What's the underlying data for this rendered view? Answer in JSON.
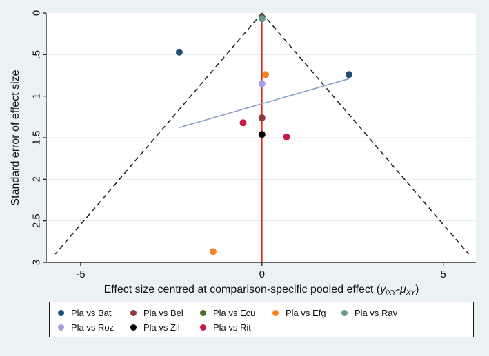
{
  "chart_data": {
    "type": "scatter",
    "title": "",
    "xlabel_main": "Effect size centred at comparison-specific pooled effect (",
    "xlabel_formula": "y",
    "xlabel_sub1": "iXY",
    "xlabel_minus": "-μ",
    "xlabel_sub2": "XY",
    "xlabel_close": ")",
    "ylabel": "Standard error of effect size",
    "xlim": [
      -5.95,
      5.9
    ],
    "ylim": [
      3,
      0
    ],
    "xticks": [
      {
        "value": -5,
        "label": "-5"
      },
      {
        "value": 0,
        "label": "0"
      },
      {
        "value": 5,
        "label": "5"
      }
    ],
    "yticks": [
      {
        "value": 0,
        "label": "0"
      },
      {
        "value": 0.5,
        "label": ".5"
      },
      {
        "value": 1,
        "label": "1"
      },
      {
        "value": 1.5,
        "label": "1.5"
      },
      {
        "value": 2,
        "label": "2"
      },
      {
        "value": 2.5,
        "label": "2.5"
      },
      {
        "value": 3,
        "label": "3"
      }
    ],
    "funnel": {
      "apex": [
        0,
        0
      ],
      "left_end": [
        -5.7,
        2.9
      ],
      "right_end": [
        5.7,
        2.9
      ]
    },
    "reference_line_x": 0,
    "fit_line": {
      "x1": -2.3,
      "y1": 1.38,
      "x2": 2.4,
      "y2": 0.79
    },
    "series": [
      {
        "name": "Pla vs Bat",
        "color": "#1f4e79",
        "points": [
          [
            -2.28,
            0.47
          ],
          [
            2.4,
            0.74
          ]
        ]
      },
      {
        "name": "Pla vs Bel",
        "color": "#8b3a3a",
        "points": [
          [
            0.0,
            1.26
          ]
        ]
      },
      {
        "name": "Pla vs Ecu",
        "color": "#4a6b2a",
        "points": [
          [
            0.0,
            0.06
          ]
        ]
      },
      {
        "name": "Pla vs Efg",
        "color": "#f28522",
        "points": [
          [
            0.1,
            0.74
          ],
          [
            -1.35,
            2.87
          ]
        ]
      },
      {
        "name": "Pla vs Rav",
        "color": "#6a9a8f",
        "points": [
          [
            0.0,
            0.07
          ]
        ]
      },
      {
        "name": "Pla vs Roz",
        "color": "#a89fe0",
        "points": [
          [
            0.0,
            0.85
          ]
        ]
      },
      {
        "name": "Pla vs Zil",
        "color": "#000000",
        "points": [
          [
            0.0,
            1.46
          ]
        ]
      },
      {
        "name": "Pla vs Rit",
        "color": "#cc1845",
        "points": [
          [
            -0.52,
            1.32
          ],
          [
            0.68,
            1.49
          ]
        ]
      }
    ],
    "legend": [
      [
        {
          "label": "Pla vs Bat",
          "color": "#1f4e79"
        },
        {
          "label": "Pla vs Bel",
          "color": "#8b3a3a"
        },
        {
          "label": "Pla vs Ecu",
          "color": "#4a6b2a"
        },
        {
          "label": "Pla vs Efg",
          "color": "#f28522"
        },
        {
          "label": "Pla vs Rav",
          "color": "#6a9a8f"
        }
      ],
      [
        {
          "label": "Pla vs Roz",
          "color": "#a89fe0"
        },
        {
          "label": "Pla vs Zil",
          "color": "#000000"
        },
        {
          "label": "Pla vs Rit",
          "color": "#cc1845"
        }
      ]
    ]
  }
}
